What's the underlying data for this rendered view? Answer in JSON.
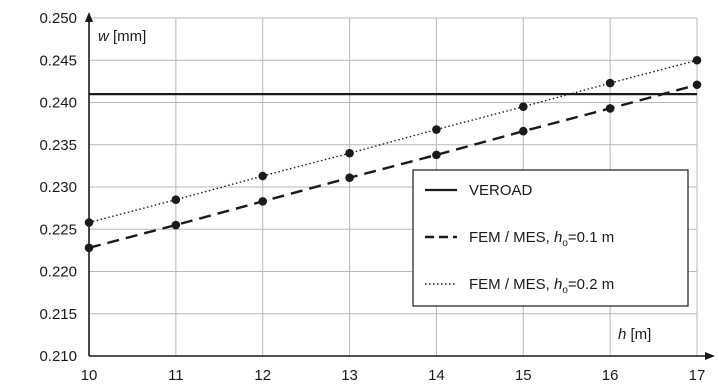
{
  "chart_data": {
    "type": "line",
    "xlabel": {
      "symbol": "h",
      "unit": " [m]"
    },
    "ylabel": {
      "symbol": "w",
      "unit": " [mm]"
    },
    "xlim": [
      10,
      17
    ],
    "ylim": [
      0.21,
      0.25
    ],
    "x_ticks": [
      "10",
      "11",
      "12",
      "13",
      "14",
      "15",
      "16",
      "17"
    ],
    "y_ticks": [
      "0.210",
      "0.215",
      "0.220",
      "0.225",
      "0.230",
      "0.235",
      "0.240",
      "0.245",
      "0.250"
    ],
    "grid": true,
    "legend_position": "bottom-right",
    "x": [
      10,
      11,
      12,
      13,
      14,
      15,
      16,
      17
    ],
    "series": [
      {
        "legend": {
          "pre": "VEROAD",
          "sub": "",
          "post": ""
        },
        "style": "solid",
        "color": "#1a1a1a",
        "markers": false,
        "values": [
          0.241,
          0.241,
          0.241,
          0.241,
          0.241,
          0.241,
          0.241,
          0.241
        ]
      },
      {
        "legend": {
          "pre": "FEM / MES, ",
          "sub": "o",
          "post": "=0.1 m"
        },
        "style": "dashed",
        "color": "#1a1a1a",
        "markers": true,
        "values": [
          0.2228,
          0.2255,
          0.2283,
          0.2311,
          0.2338,
          0.2366,
          0.2393,
          0.2421
        ]
      },
      {
        "legend": {
          "pre": "FEM / MES, ",
          "sub": "o",
          "post": "=0.2 m"
        },
        "style": "dotted",
        "color": "#1a1a1a",
        "markers": true,
        "values": [
          0.2258,
          0.2285,
          0.2313,
          0.234,
          0.2368,
          0.2395,
          0.2423,
          0.245
        ]
      }
    ]
  }
}
